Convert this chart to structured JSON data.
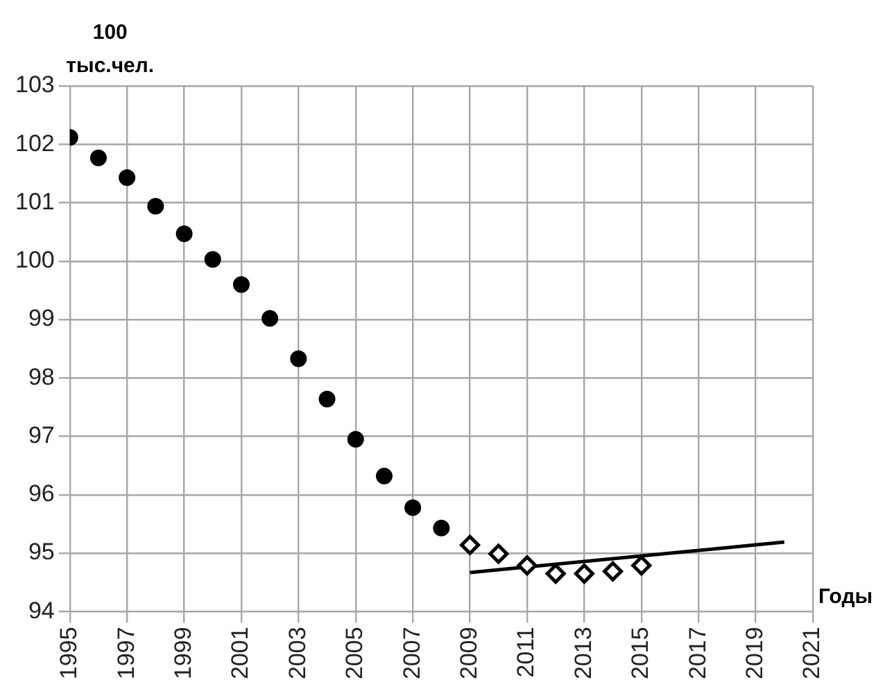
{
  "chart_data": {
    "type": "scatter",
    "xlabel": "Годы",
    "ylabel": "100 тыс.чел.",
    "xlim": [
      1995,
      2021
    ],
    "xticks": [
      1995,
      1997,
      1999,
      2001,
      2003,
      2005,
      2007,
      2009,
      2011,
      2013,
      2015,
      2017,
      2019,
      2021
    ],
    "ylim": [
      94,
      103
    ],
    "yticks": [
      94,
      95,
      96,
      97,
      98,
      99,
      100,
      101,
      102,
      103
    ],
    "grid": true,
    "legend": false,
    "series": [
      {
        "marker": "circle",
        "color": "#000000",
        "x": [
          1995,
          1996,
          1997,
          1998,
          1999,
          2000,
          2001,
          2002,
          2003,
          2004,
          2005,
          2006,
          2007,
          2008
        ],
        "values": [
          102.12,
          101.77,
          101.43,
          100.94,
          100.47,
          100.03,
          99.6,
          99.02,
          98.33,
          97.64,
          96.95,
          96.32,
          95.78,
          95.43
        ]
      },
      {
        "marker": "diamond",
        "color": "#000000",
        "x": [
          2009,
          2010,
          2011,
          2012,
          2013,
          2014,
          2015
        ],
        "values": [
          95.14,
          94.99,
          94.79,
          94.65,
          94.65,
          94.69,
          94.79
        ]
      },
      {
        "type": "line",
        "marker": "none",
        "line_style": "solid",
        "color": "#000000",
        "x": [
          2009,
          2020
        ],
        "values": [
          94.67,
          95.19
        ]
      }
    ]
  }
}
